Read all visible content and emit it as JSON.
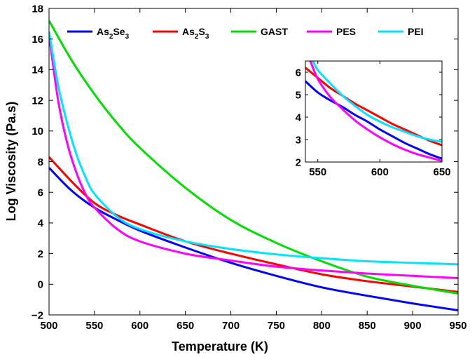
{
  "chart_data": [
    {
      "type": "line",
      "xlabel": "Temperature (K)",
      "ylabel": "Log Viscosity (Pa.s)",
      "xlim": [
        500,
        950
      ],
      "ylim": [
        -2,
        18
      ],
      "xticks": [
        500,
        550,
        600,
        650,
        700,
        750,
        800,
        850,
        900,
        950
      ],
      "yticks": [
        -2,
        0,
        2,
        4,
        6,
        8,
        10,
        12,
        14,
        16,
        18
      ],
      "grid": false,
      "legend": "top",
      "legend_items": [
        {
          "label": "As",
          "sub": "2",
          "label2": "Se",
          "sub2": "3",
          "color": "#0000ff"
        },
        {
          "label": "As",
          "sub": "2",
          "label2": "S",
          "sub2": "3",
          "color": "#ff0000"
        },
        {
          "label": "GAST",
          "color": "#00e000"
        },
        {
          "label": "PES",
          "color": "#ff00ff"
        },
        {
          "label": "PEI",
          "color": "#00e5ff"
        }
      ],
      "series": [
        {
          "name": "As2Se3",
          "color": "#0000ff",
          "x": [
            500,
            525,
            550,
            575,
            600,
            650,
            700,
            750,
            800,
            850,
            900,
            950
          ],
          "y": [
            7.6,
            6.1,
            5.0,
            4.2,
            3.5,
            2.4,
            1.4,
            0.55,
            -0.2,
            -0.75,
            -1.25,
            -1.7
          ]
        },
        {
          "name": "As2S3",
          "color": "#ff0000",
          "x": [
            500,
            525,
            550,
            575,
            600,
            650,
            700,
            750,
            800,
            850,
            900,
            950
          ],
          "y": [
            8.3,
            6.7,
            5.3,
            4.5,
            3.9,
            2.8,
            2.0,
            1.3,
            0.65,
            0.2,
            -0.15,
            -0.5
          ]
        },
        {
          "name": "GAST",
          "color": "#00e000",
          "x": [
            500,
            525,
            550,
            575,
            600,
            650,
            700,
            750,
            800,
            850,
            900,
            950
          ],
          "y": [
            17.2,
            14.6,
            12.4,
            10.5,
            8.9,
            6.3,
            4.2,
            2.7,
            1.5,
            0.5,
            -0.1,
            -0.6
          ]
        },
        {
          "name": "PES",
          "color": "#ff00ff",
          "x": [
            500,
            510,
            520,
            530,
            540,
            550,
            575,
            600,
            650,
            700,
            750,
            800,
            850,
            900,
            950
          ],
          "y": [
            16.3,
            12.0,
            9.2,
            7.3,
            5.9,
            5.0,
            3.6,
            2.8,
            2.0,
            1.55,
            1.15,
            0.9,
            0.7,
            0.55,
            0.4
          ]
        },
        {
          "name": "PEI",
          "color": "#00e5ff",
          "x": [
            500,
            510,
            520,
            530,
            540,
            550,
            575,
            600,
            650,
            700,
            750,
            800,
            850,
            900,
            950
          ],
          "y": [
            16.5,
            13.0,
            10.5,
            8.5,
            7.0,
            5.9,
            4.4,
            3.6,
            2.8,
            2.3,
            1.95,
            1.7,
            1.5,
            1.4,
            1.3
          ]
        }
      ]
    },
    {
      "type": "line",
      "xlim": [
        540,
        650
      ],
      "ylim": [
        2,
        6.5
      ],
      "xticks": [
        550,
        600,
        650
      ],
      "yticks": [
        2,
        3,
        4,
        5,
        6
      ],
      "series": [
        {
          "name": "As2Se3",
          "color": "#0000ff",
          "x": [
            540,
            550,
            560,
            570,
            580,
            590,
            600,
            610,
            620,
            630,
            640,
            650
          ],
          "y": [
            5.6,
            5.1,
            4.75,
            4.45,
            4.1,
            3.8,
            3.45,
            3.15,
            2.85,
            2.6,
            2.35,
            2.15
          ]
        },
        {
          "name": "As2S3",
          "color": "#ff0000",
          "x": [
            540,
            550,
            560,
            570,
            580,
            590,
            600,
            610,
            620,
            630,
            640,
            650
          ],
          "y": [
            6.2,
            5.75,
            5.3,
            4.95,
            4.6,
            4.3,
            4.0,
            3.7,
            3.45,
            3.2,
            2.95,
            2.75
          ]
        },
        {
          "name": "PES",
          "color": "#ff00ff",
          "x": [
            544,
            550,
            560,
            570,
            580,
            590,
            600,
            610,
            620,
            630,
            640,
            650
          ],
          "y": [
            6.5,
            5.7,
            4.9,
            4.35,
            3.85,
            3.45,
            3.1,
            2.8,
            2.55,
            2.35,
            2.2,
            2.05
          ]
        },
        {
          "name": "PEI",
          "color": "#00e5ff",
          "x": [
            546,
            550,
            560,
            570,
            580,
            590,
            600,
            610,
            620,
            630,
            640,
            650
          ],
          "y": [
            6.5,
            6.1,
            5.5,
            4.95,
            4.5,
            4.1,
            3.8,
            3.55,
            3.35,
            3.15,
            3.0,
            2.9
          ]
        }
      ]
    }
  ]
}
